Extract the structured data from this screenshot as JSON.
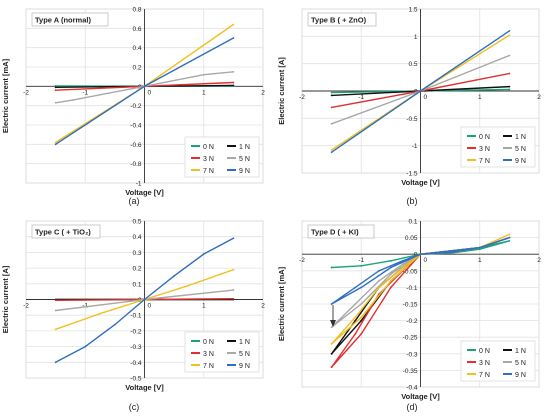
{
  "figure": {
    "panel_captions": [
      "(a)",
      "(b)",
      "(c)",
      "(d)"
    ]
  },
  "colors": {
    "0 N": "#1aa37a",
    "1 N": "#111111",
    "3 N": "#e03030",
    "5 N": "#a8a8a8",
    "7 N": "#f0c020",
    "9 N": "#2f6fbf"
  },
  "chart_data": [
    {
      "type": "line",
      "panel": "(a)",
      "title": "Type A (normal)",
      "xlabel": "Voltage  [V]",
      "ylabel": "Electric current  [mA]",
      "xlim": [
        -2,
        2
      ],
      "ylim": [
        -1,
        0.8
      ],
      "xticks": [
        -2,
        -1,
        0,
        1,
        2
      ],
      "yticks": [
        -1,
        -0.8,
        -0.6,
        -0.4,
        -0.2,
        0,
        0.2,
        0.4,
        0.6,
        0.8
      ],
      "ytick_labels": [
        "-1",
        "-0.8",
        "-0.6",
        "-0.4",
        "-0.2",
        "0",
        "0.2",
        "0.4",
        "0.6",
        "0.8"
      ],
      "legend": [
        "0 N",
        "1 N",
        "3 N",
        "5 N",
        "7 N",
        "9 N"
      ],
      "legend_position": "bottom-right",
      "grid": true,
      "series": [
        {
          "name": "0 N",
          "x": [
            -1.5,
            0,
            1.5
          ],
          "y": [
            0.005,
            0,
            0.005
          ]
        },
        {
          "name": "1 N",
          "x": [
            -1.5,
            0,
            1.5
          ],
          "y": [
            -0.01,
            0,
            0.01
          ]
        },
        {
          "name": "3 N",
          "x": [
            -1.5,
            0,
            1.5
          ],
          "y": [
            -0.04,
            0,
            0.04
          ]
        },
        {
          "name": "5 N",
          "x": [
            -1.5,
            -1.2,
            0,
            1.0,
            1.5
          ],
          "y": [
            -0.17,
            -0.14,
            0,
            0.12,
            0.15
          ]
        },
        {
          "name": "7 N",
          "x": [
            -1.5,
            0,
            1.5
          ],
          "y": [
            -0.58,
            0,
            0.64
          ]
        },
        {
          "name": "9 N",
          "x": [
            -1.5,
            0,
            1.5
          ],
          "y": [
            -0.6,
            0,
            0.5
          ]
        }
      ]
    },
    {
      "type": "line",
      "panel": "(b)",
      "title": "Type B ( + ZnO)",
      "xlabel": "Voltage  [V]",
      "ylabel": "Electric current  [A]",
      "xlim": [
        -2,
        2
      ],
      "ylim": [
        -1.5,
        1.5
      ],
      "xticks": [
        -2,
        -1,
        0,
        1,
        2
      ],
      "yticks": [
        -1.5,
        -1,
        -0.5,
        0,
        0.5,
        1,
        1.5
      ],
      "ytick_labels": [
        "-1.5",
        "-1",
        "-0.5",
        "0",
        "0.5",
        "1",
        "1.5"
      ],
      "legend": [
        "0 N",
        "1 N",
        "3 N",
        "5 N",
        "7 N",
        "9 N"
      ],
      "legend_position": "bottom-right",
      "grid": true,
      "series": [
        {
          "name": "0 N",
          "x": [
            -1.5,
            0,
            1.5
          ],
          "y": [
            -0.03,
            0,
            0.03
          ]
        },
        {
          "name": "1 N",
          "x": [
            -1.5,
            0,
            1.5
          ],
          "y": [
            -0.08,
            0,
            0.08
          ]
        },
        {
          "name": "3 N",
          "x": [
            -1.5,
            0,
            1.5
          ],
          "y": [
            -0.3,
            0,
            0.32
          ]
        },
        {
          "name": "5 N",
          "x": [
            -1.5,
            0,
            1.5
          ],
          "y": [
            -0.6,
            0,
            0.65
          ]
        },
        {
          "name": "7 N",
          "x": [
            -1.5,
            0,
            1.5
          ],
          "y": [
            -1.08,
            0,
            1.02
          ]
        },
        {
          "name": "9 N",
          "x": [
            -1.5,
            0,
            1.5
          ],
          "y": [
            -1.12,
            0,
            1.1
          ]
        }
      ]
    },
    {
      "type": "line",
      "panel": "(c)",
      "title": "Type C ( + TiO₂)",
      "xlabel": "Voltage  [V]",
      "ylabel": "Electric current  [A]",
      "xlim": [
        -2,
        2
      ],
      "ylim": [
        -0.5,
        0.5
      ],
      "xticks": [
        -2,
        -1,
        0,
        1,
        2
      ],
      "yticks": [
        -0.5,
        -0.4,
        -0.3,
        -0.2,
        -0.1,
        0,
        0.1,
        0.2,
        0.3,
        0.4,
        0.5
      ],
      "ytick_labels": [
        "-0.5",
        "-0.4",
        "-0.3",
        "-0.2",
        "-0.1",
        "0",
        "0.1",
        "0.2",
        "0.3",
        "0.4",
        "0.5"
      ],
      "legend": [
        "0 N",
        "1 N",
        "3 N",
        "5 N",
        "7 N",
        "9 N"
      ],
      "legend_position": "bottom-right",
      "grid": true,
      "series": [
        {
          "name": "0 N",
          "x": [
            -1.5,
            0,
            1.5
          ],
          "y": [
            0,
            0,
            0
          ]
        },
        {
          "name": "1 N",
          "x": [
            -1.5,
            0,
            1.5
          ],
          "y": [
            0,
            0,
            0
          ]
        },
        {
          "name": "3 N",
          "x": [
            -1.5,
            0,
            1.5
          ],
          "y": [
            -0.005,
            0,
            0.005
          ]
        },
        {
          "name": "5 N",
          "x": [
            -1.5,
            0,
            1.5
          ],
          "y": [
            -0.07,
            0,
            0.06
          ]
        },
        {
          "name": "7 N",
          "x": [
            -1.5,
            -0.75,
            0,
            0.75,
            1.5
          ],
          "y": [
            -0.19,
            -0.09,
            0,
            0.09,
            0.19
          ]
        },
        {
          "name": "9 N",
          "x": [
            -1.5,
            -1.0,
            -0.5,
            0,
            0.5,
            1.0,
            1.5
          ],
          "y": [
            -0.4,
            -0.3,
            -0.16,
            0,
            0.15,
            0.29,
            0.39
          ]
        }
      ]
    },
    {
      "type": "line",
      "panel": "(d)",
      "title": "Type D ( + KI)",
      "xlabel": "Voltage  [V]",
      "ylabel": "Electric current  [mA]",
      "xlim": [
        -2,
        2
      ],
      "ylim": [
        -0.4,
        0.1
      ],
      "xticks": [
        -2,
        -1,
        0,
        1,
        2
      ],
      "yticks": [
        -0.4,
        -0.35,
        -0.3,
        -0.25,
        -0.2,
        -0.15,
        -0.1,
        -0.05,
        0,
        0.05,
        0.1
      ],
      "ytick_labels": [
        "-0.4",
        "-0.35",
        "-0.3",
        "-0.25",
        "-0.2",
        "-0.15",
        "-0.1",
        "-0.05",
        "0",
        "0.05",
        "0.1"
      ],
      "legend": [
        "0 N",
        "1 N",
        "3 N",
        "5 N",
        "7 N",
        "9 N"
      ],
      "legend_position": "bottom-right",
      "grid": true,
      "series": [
        {
          "name": "0 N",
          "x": [
            -1.5,
            -1.0,
            -0.5,
            0,
            0.5,
            1.0,
            1.5,
            1.0,
            0.5,
            0,
            -0.5,
            -1.0,
            -1.5
          ],
          "y": [
            -0.04,
            -0.035,
            -0.02,
            0,
            0.005,
            0.02,
            0.04,
            0.015,
            0.003,
            0,
            -0.02,
            -0.035,
            -0.04
          ]
        },
        {
          "name": "1 N",
          "x": [
            -1.5,
            -1.0,
            -0.5,
            0,
            0.5,
            1.0,
            1.5,
            1.0,
            0.5,
            0,
            -0.3,
            -0.7,
            -1.1,
            -1.5
          ],
          "y": [
            -0.3,
            -0.2,
            -0.08,
            0,
            0.01,
            0.02,
            0.05,
            0.02,
            0.005,
            0,
            -0.04,
            -0.1,
            -0.2,
            -0.3
          ]
        },
        {
          "name": "3 N",
          "x": [
            -1.5,
            -1.0,
            -0.5,
            0,
            0.5,
            1.0,
            1.5,
            1.0,
            0.5,
            0,
            -0.3,
            -0.7,
            -1.1,
            -1.5
          ],
          "y": [
            -0.34,
            -0.24,
            -0.1,
            0,
            0.01,
            0.02,
            0.05,
            0.02,
            0.005,
            0,
            -0.05,
            -0.12,
            -0.24,
            -0.34
          ]
        },
        {
          "name": "5 N",
          "x": [
            -1.5,
            -1.0,
            -0.5,
            0,
            0.5,
            1.0,
            1.5,
            1.0,
            0.5,
            0,
            -0.3,
            -0.7,
            -1.1,
            -1.5
          ],
          "y": [
            -0.22,
            -0.15,
            -0.06,
            0,
            0.01,
            0.02,
            0.05,
            0.02,
            0.005,
            0,
            -0.03,
            -0.08,
            -0.15,
            -0.22
          ]
        },
        {
          "name": "7 N",
          "x": [
            -1.5,
            -1.0,
            -0.5,
            0,
            0.5,
            1.0,
            1.5,
            1.0,
            0.5,
            0,
            -0.3,
            -0.7,
            -1.1,
            -1.5
          ],
          "y": [
            -0.27,
            -0.19,
            -0.08,
            0,
            0.01,
            0.02,
            0.06,
            0.02,
            0.005,
            0,
            -0.04,
            -0.1,
            -0.19,
            -0.27
          ]
        },
        {
          "name": "9 N",
          "x": [
            -1.5,
            -1.0,
            -0.5,
            0,
            0.5,
            1.0,
            1.5,
            1.0,
            0.5,
            0,
            -0.3,
            -0.7,
            -1.1,
            -1.5
          ],
          "y": [
            -0.15,
            -0.1,
            -0.04,
            0,
            0.01,
            0.02,
            0.05,
            0.02,
            0.005,
            0,
            -0.02,
            -0.05,
            -0.1,
            -0.15
          ]
        }
      ]
    }
  ]
}
